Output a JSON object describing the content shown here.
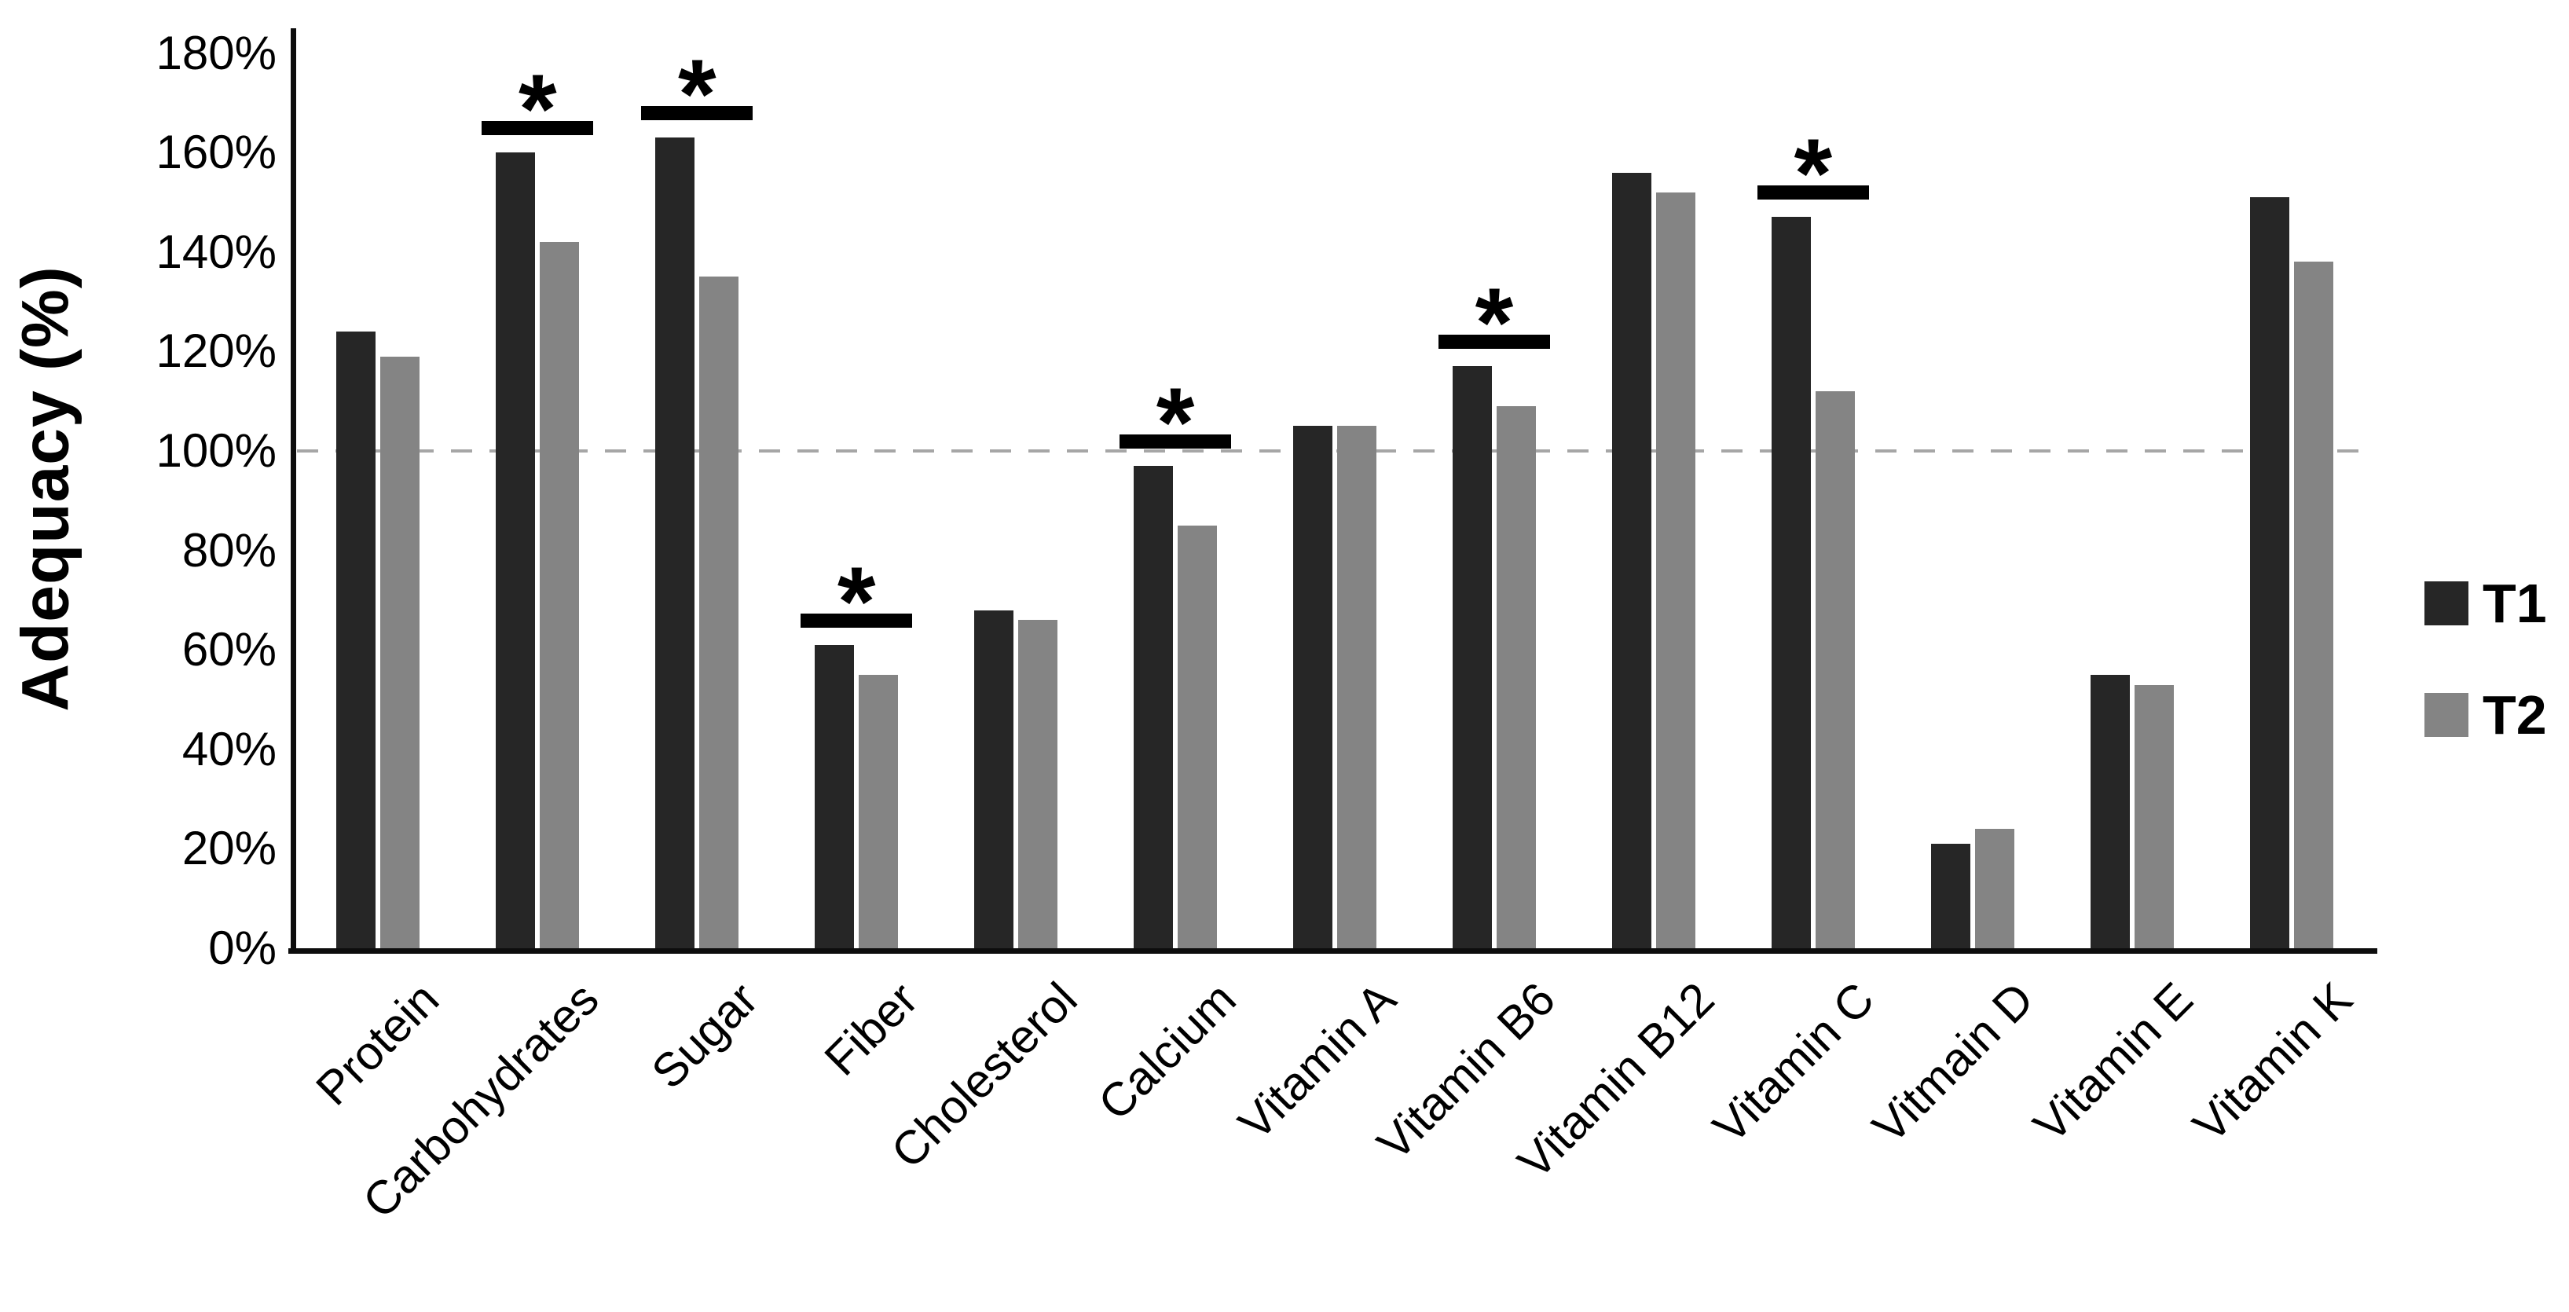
{
  "chart_data": {
    "type": "bar",
    "title": "",
    "ylabel": "Adequacy (%)",
    "xlabel": "",
    "categories": [
      "Protein",
      "Carbohydrates",
      "Sugar",
      "Fiber",
      "Cholesterol",
      "Calcium",
      "Vitamin A",
      "Vitamin B6",
      "Vitamin B12",
      "Vitamin C",
      "Vitmain D",
      "Vitamin E",
      "Vitamin K"
    ],
    "series": [
      {
        "name": "T1",
        "color": "#262626",
        "values": [
          124,
          160,
          163,
          61,
          68,
          97,
          105,
          117,
          156,
          147,
          21,
          55,
          151
        ]
      },
      {
        "name": "T2",
        "color": "#848484",
        "values": [
          119,
          142,
          135,
          55,
          66,
          85,
          105,
          109,
          152,
          112,
          24,
          53,
          138
        ]
      }
    ],
    "ylim": [
      0,
      180
    ],
    "y_tick_step": 20,
    "y_tick_labels": [
      "0%",
      "20%",
      "40%",
      "60%",
      "80%",
      "100%",
      "120%",
      "140%",
      "160%",
      "180%"
    ],
    "reference_line": {
      "value": 100,
      "style": "dashed",
      "color": "#a6a6a6"
    },
    "significance": {
      "marker": "*",
      "categories": [
        "Carbohydrates",
        "Sugar",
        "Fiber",
        "Calcium",
        "Vitamin B6",
        "Vitamin C"
      ]
    },
    "legend": {
      "position": "right",
      "items": [
        "T1",
        "T2"
      ]
    },
    "grid": "off",
    "axis_color": "#0d0d0d"
  }
}
